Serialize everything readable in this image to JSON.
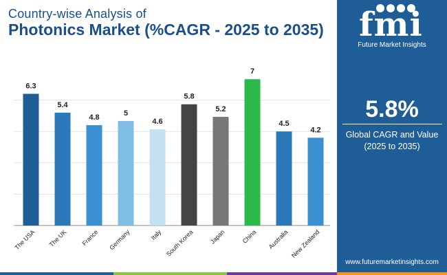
{
  "title": {
    "line1": "Country-wise Analysis of",
    "line2": "Photonics Market (%CAGR - 2025 to 2035)"
  },
  "chart_data": {
    "type": "bar",
    "categories": [
      "The USA",
      "The UK",
      "France",
      "Germany",
      "Italy",
      "South Korea",
      "Japan",
      "China",
      "Australia",
      "New Zealand"
    ],
    "values": [
      6.3,
      5.4,
      4.8,
      5,
      4.6,
      5.8,
      5.2,
      7,
      4.5,
      4.2
    ],
    "data_labels": [
      "6.3",
      "5.4",
      "4.8",
      "5",
      "4.6",
      "5.8",
      "5.2",
      "7",
      "4.5",
      "4.2"
    ],
    "colors": [
      "#1f5d97",
      "#2b79b9",
      "#3a90d0",
      "#7fbde4",
      "#c3e0f1",
      "#444444",
      "#777777",
      "#2db84a",
      "#2b79b9",
      "#3a90d0"
    ],
    "ylim": [
      0,
      7.5
    ],
    "grid": true,
    "xlabel": "",
    "ylabel": ""
  },
  "side_panel": {
    "logo": "fmi",
    "company": "Future Market Insights",
    "cagr_value": "5.8%",
    "cagr_label_line1": "Global CAGR and Value",
    "cagr_label_line2": "(2025 to 2035)",
    "website": "www.futuremarketinsights.com",
    "background": "#1f5d97"
  },
  "bottom_bar_colors": [
    "#1f5d97",
    "#8cc63f",
    "#6a3d9a",
    "#f7941d"
  ]
}
